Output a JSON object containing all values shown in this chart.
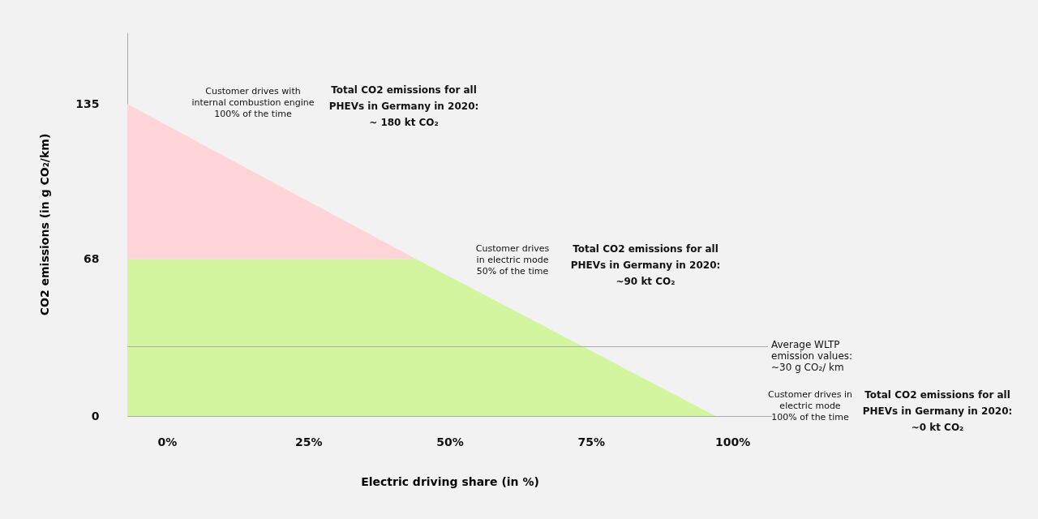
{
  "chart_data": {
    "type": "area",
    "stacked": true,
    "xlabel": "Electric driving share (in %)",
    "ylabel": "CO2 emissions (in g CO₂/km)",
    "x": [
      -7,
      44,
      97
    ],
    "series": [
      {
        "color": "#d4f5a0",
        "values": [
          68,
          68,
          0
        ]
      },
      {
        "color": "#ffd5da",
        "values": [
          67,
          0,
          0
        ]
      }
    ],
    "xlim": [
      -7,
      107
    ],
    "ylim": [
      0,
      166
    ],
    "xticks": [
      {
        "value": 0,
        "label": "0%"
      },
      {
        "value": 25,
        "label": "25%"
      },
      {
        "value": 50,
        "label": "50%"
      },
      {
        "value": 75,
        "label": "75%"
      },
      {
        "value": 100,
        "label": "100%"
      }
    ],
    "yticks": [
      0,
      68,
      135
    ],
    "ref_lines": [
      {
        "axis": "y",
        "value": 30,
        "label": "Average WLTP\nemission values:\n~30 g CO₂/ km",
        "color": "#aaaaaa"
      }
    ],
    "annotations": [
      "Customer drives with\ninternal combustion engine\n100% of the time",
      "Total CO2 emissions for all\nPHEVs in Germany in 2020:\n~ 180 kt CO₂",
      "Customer drives\nin electric mode\n50% of the time",
      "Total CO2 emissions for all\nPHEVs in Germany in 2020:\n~90 kt CO₂",
      "Customer drives in\nelectric mode\n100% of the time",
      "Total CO2 emissions for all\nPHEVs in Germany in 2020:\n~0 kt CO₂"
    ],
    "grid": false,
    "legend": false
  }
}
